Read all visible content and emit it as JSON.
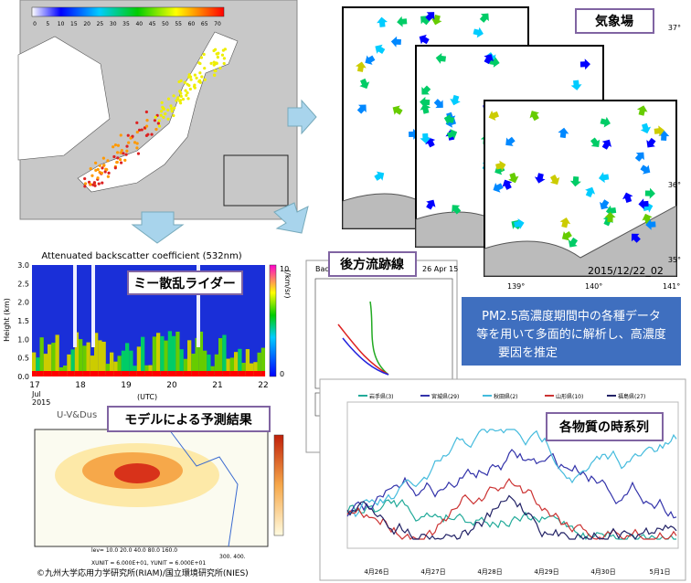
{
  "japan_map": {
    "colorbar_ticks": [
      0,
      5,
      10,
      15,
      20,
      25,
      30,
      35,
      40,
      45,
      50,
      55,
      60,
      65,
      70
    ]
  },
  "weather": {
    "label": "気象場",
    "lat_ticks": [
      "37°",
      "36°",
      "35°"
    ],
    "lon_ticks": [
      "139°",
      "140°",
      "141°"
    ],
    "timestamp": "2015/12/22_02"
  },
  "lidar": {
    "title": "Attenuated backscatter coefficient (532nm)",
    "label": "ミー散乱ライダー",
    "y_label": "Height (km)",
    "yticks": [
      "0.0",
      "0.5",
      "1.0",
      "1.5",
      "2.0",
      "2.5",
      "3.0"
    ],
    "xticks": [
      "17",
      "18",
      "19",
      "20",
      "21",
      "22"
    ],
    "month": "Jul",
    "year": "2015",
    "x_unit": "(UTC)",
    "cbar_top": "10",
    "cbar_bottom": "0",
    "cbar_unit": "(/km/sr)"
  },
  "model": {
    "header": "U-V&Dus",
    "label": "モデルによる予測結果",
    "levels": "lev= 10.0 20.0 40.0 80.0 160.0",
    "levels2": "300. 400.",
    "units": "XUNIT = 6.000E+01, YUNIT = 6.000E+01",
    "credit": "©九州大学応用力学研究所(RIAM)/国立環境研究所(NIES)"
  },
  "trajectory": {
    "label": "後方流跡線",
    "prefix": "Back",
    "date": "26 Apr 15"
  },
  "summary": {
    "lines": [
      "PM2.5高濃度期間中の各種データ",
      "等を用いて多面的に解析し、高濃度",
      "要因を推定"
    ]
  },
  "timeseries": {
    "label": "各物質の時系列",
    "legend": [
      "岩手県(3)",
      "宮城県(29)",
      "秋田県(2)",
      "山形県(10)",
      "福島県(27)"
    ],
    "dates": [
      "4月26日",
      "4月27日",
      "4月28日",
      "4月29日",
      "4月30日",
      "5月1日"
    ]
  }
}
